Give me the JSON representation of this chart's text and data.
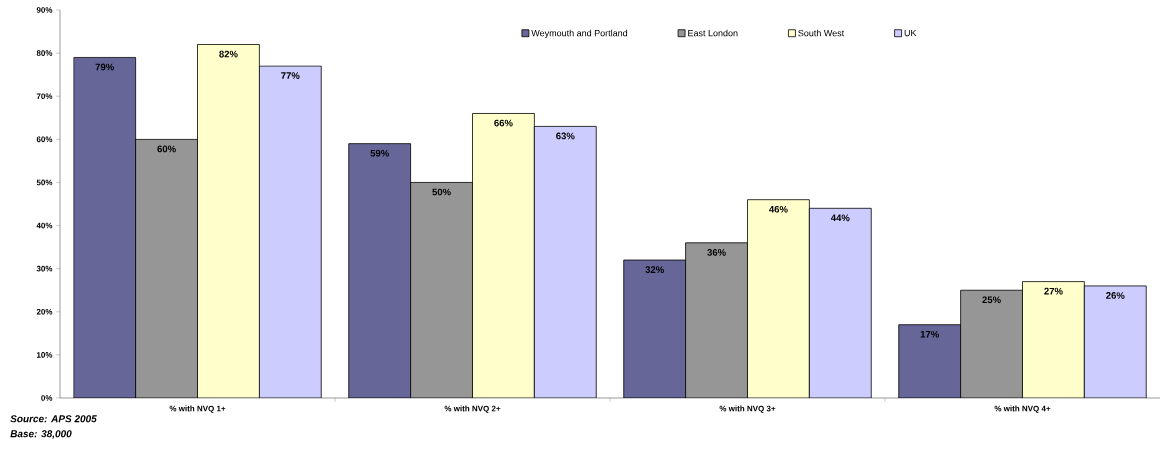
{
  "chart_data": {
    "type": "bar",
    "categories": [
      "% with NVQ 1+",
      "% with NVQ 2+",
      "% with NVQ 3+",
      "% with NVQ 4+"
    ],
    "series": [
      {
        "name": "Weymouth and Portland",
        "color": "#666699",
        "values": [
          79,
          59,
          32,
          17
        ],
        "value_labels": [
          "79%",
          "59%",
          "32%",
          "17%"
        ]
      },
      {
        "name": "East London",
        "color": "#969696",
        "values": [
          60,
          50,
          36,
          25
        ],
        "value_labels": [
          "60%",
          "50%",
          "36%",
          "25%"
        ]
      },
      {
        "name": "South West",
        "color": "#ffffcc",
        "values": [
          82,
          66,
          46,
          27
        ],
        "value_labels": [
          "82%",
          "66%",
          "46%",
          "27%"
        ]
      },
      {
        "name": "UK",
        "color": "#ccccff",
        "values": [
          77,
          63,
          44,
          26
        ],
        "value_labels": [
          "77%",
          "63%",
          "44%",
          "26%"
        ]
      }
    ],
    "ylim": [
      0,
      90
    ],
    "yticks": [
      {
        "value": 0,
        "label": "0%"
      },
      {
        "value": 10,
        "label": "10%"
      },
      {
        "value": 20,
        "label": "20%"
      },
      {
        "value": 30,
        "label": "30%"
      },
      {
        "value": 40,
        "label": "40%"
      },
      {
        "value": 50,
        "label": "50%"
      },
      {
        "value": 60,
        "label": "60%"
      },
      {
        "value": 70,
        "label": "70%"
      },
      {
        "value": 80,
        "label": "80%"
      },
      {
        "value": 90,
        "label": "90%"
      }
    ],
    "grid": false,
    "legend": "top",
    "annotations": [
      "Source: APS 2005",
      "Base: 38,000"
    ]
  }
}
